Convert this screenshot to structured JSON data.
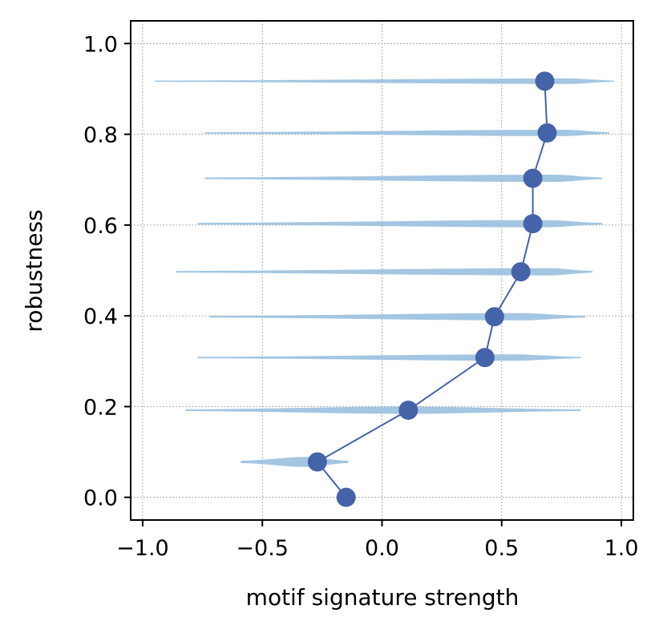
{
  "chart_data": {
    "type": "line",
    "title": "",
    "xlabel": "motif signature strength",
    "ylabel": "robustness",
    "xlim": [
      -1.05,
      1.05
    ],
    "ylim": [
      -0.05,
      1.05
    ],
    "xticks": [
      -1.0,
      -0.5,
      0.0,
      0.5,
      1.0
    ],
    "xtick_labels": [
      "−1.0",
      "−0.5",
      "0.0",
      "0.5",
      "1.0"
    ],
    "yticks": [
      0.0,
      0.2,
      0.4,
      0.6,
      0.8,
      1.0
    ],
    "ytick_labels": [
      "0.0",
      "0.2",
      "0.4",
      "0.6",
      "0.8",
      "1.0"
    ],
    "grid": true,
    "legend": "none",
    "colors": {
      "line": "#4463a8",
      "violin": "#9ec3e0",
      "grid": "#9a9a9a"
    },
    "series": [
      {
        "x": [
          -0.15,
          -0.27,
          0.11,
          0.43,
          0.47,
          0.58,
          0.63,
          0.63,
          0.69,
          0.68
        ],
        "y": [
          0.0,
          0.078,
          0.192,
          0.308,
          0.398,
          0.497,
          0.603,
          0.703,
          0.803,
          0.917
        ]
      }
    ],
    "violins": [
      {
        "y": 0.078,
        "min": -0.59,
        "max": -0.14,
        "peak": -0.32,
        "width": 0.011
      },
      {
        "y": 0.192,
        "min": -0.82,
        "max": 0.83,
        "peak": 0.1,
        "width": 0.008
      },
      {
        "y": 0.308,
        "min": -0.77,
        "max": 0.83,
        "peak": 0.55,
        "width": 0.007
      },
      {
        "y": 0.398,
        "min": -0.72,
        "max": 0.85,
        "peak": 0.58,
        "width": 0.008
      },
      {
        "y": 0.497,
        "min": -0.86,
        "max": 0.88,
        "peak": 0.7,
        "width": 0.008
      },
      {
        "y": 0.603,
        "min": -0.77,
        "max": 0.92,
        "peak": 0.68,
        "width": 0.008
      },
      {
        "y": 0.703,
        "min": -0.74,
        "max": 0.92,
        "peak": 0.72,
        "width": 0.008
      },
      {
        "y": 0.803,
        "min": -0.74,
        "max": 0.95,
        "peak": 0.76,
        "width": 0.007
      },
      {
        "y": 0.917,
        "min": -0.95,
        "max": 0.97,
        "peak": 0.78,
        "width": 0.006
      }
    ]
  }
}
